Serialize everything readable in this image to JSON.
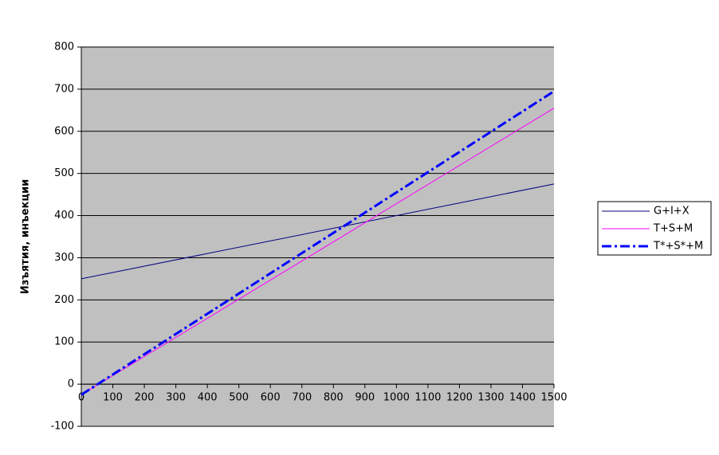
{
  "chart_data": {
    "type": "line",
    "y_label": "Изъятия, инъекции",
    "x": [
      0,
      1500
    ],
    "series": [
      {
        "name": "G+I+X",
        "color": "#000080",
        "values": [
          250,
          475
        ],
        "dash": "solid",
        "width": 1
      },
      {
        "name": "T+S+M",
        "color": "#ff00ff",
        "values": [
          -25,
          655
        ],
        "dash": "solid",
        "width": 1
      },
      {
        "name": "T*+S*+M",
        "color": "#0000ff",
        "values": [
          -25,
          695
        ],
        "dash": "dash-dot",
        "width": 3
      }
    ],
    "xlim": [
      0,
      1500
    ],
    "xticks": [
      0,
      100,
      200,
      300,
      400,
      500,
      600,
      700,
      800,
      900,
      1000,
      1100,
      1200,
      1300,
      1400,
      1500
    ],
    "ylim": [
      -100,
      800
    ],
    "yticks": [
      -100,
      0,
      100,
      200,
      300,
      400,
      500,
      600,
      700,
      800
    ],
    "grid": true,
    "legend": "right"
  }
}
